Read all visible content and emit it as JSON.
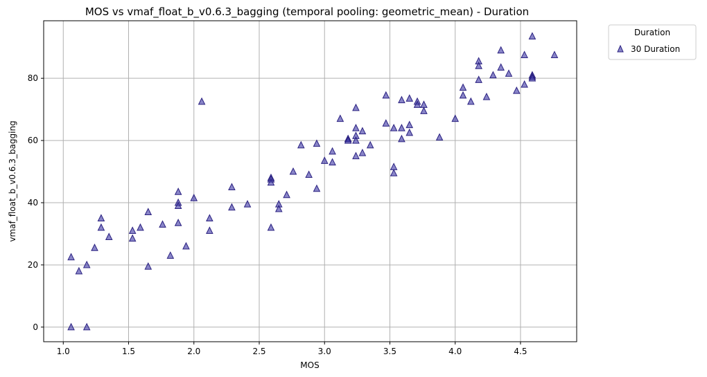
{
  "chart_data": {
    "type": "scatter",
    "title": "MOS vs vmaf_float_b_v0.6.3_bagging (temporal pooling: geometric_mean) - Duration",
    "xlabel": "MOS",
    "ylabel": "vmaf_float_b_v0.6.3_bagging",
    "xlim": [
      0.85,
      4.93
    ],
    "ylim": [
      -4.7,
      98.5
    ],
    "xticks": [
      "1.0",
      "1.5",
      "2.0",
      "2.5",
      "3.0",
      "3.5",
      "4.0",
      "4.5"
    ],
    "xtick_values": [
      1.0,
      1.5,
      2.0,
      2.5,
      3.0,
      3.5,
      4.0,
      4.5
    ],
    "yticks": [
      "0",
      "20",
      "40",
      "60",
      "80"
    ],
    "ytick_values": [
      0,
      20,
      40,
      60,
      80
    ],
    "grid": true,
    "legend": {
      "title": "Duration",
      "position": "outside-top-right"
    },
    "series": [
      {
        "name": "30 Duration",
        "marker": "triangle",
        "color": "#3b33a3",
        "points": [
          [
            1.06,
            22.5
          ],
          [
            1.06,
            0.0
          ],
          [
            1.12,
            18.0
          ],
          [
            1.18,
            20.0
          ],
          [
            1.18,
            0.0
          ],
          [
            1.24,
            25.5
          ],
          [
            1.29,
            35.0
          ],
          [
            1.29,
            32.0
          ],
          [
            1.35,
            29.0
          ],
          [
            1.53,
            31.0
          ],
          [
            1.53,
            28.5
          ],
          [
            1.59,
            32.0
          ],
          [
            1.65,
            37.0
          ],
          [
            1.65,
            19.5
          ],
          [
            1.76,
            33.0
          ],
          [
            1.82,
            23.0
          ],
          [
            1.88,
            43.5
          ],
          [
            1.88,
            40.0
          ],
          [
            1.88,
            39.0
          ],
          [
            1.88,
            33.5
          ],
          [
            1.94,
            26.0
          ],
          [
            2.0,
            41.5
          ],
          [
            2.06,
            72.5
          ],
          [
            2.12,
            35.0
          ],
          [
            2.12,
            31.0
          ],
          [
            2.29,
            45.0
          ],
          [
            2.29,
            38.5
          ],
          [
            2.41,
            39.5
          ],
          [
            2.59,
            48.0
          ],
          [
            2.59,
            47.5
          ],
          [
            2.59,
            46.5
          ],
          [
            2.59,
            32.0
          ],
          [
            2.65,
            39.5
          ],
          [
            2.65,
            38.0
          ],
          [
            2.71,
            42.5
          ],
          [
            2.76,
            50.0
          ],
          [
            2.82,
            58.5
          ],
          [
            2.88,
            49.0
          ],
          [
            2.94,
            59.0
          ],
          [
            2.94,
            44.5
          ],
          [
            3.0,
            53.5
          ],
          [
            3.06,
            56.5
          ],
          [
            3.06,
            53.0
          ],
          [
            3.12,
            67.0
          ],
          [
            3.18,
            60.5
          ],
          [
            3.18,
            60.5
          ],
          [
            3.18,
            60.0
          ],
          [
            3.24,
            70.5
          ],
          [
            3.24,
            64.0
          ],
          [
            3.24,
            61.5
          ],
          [
            3.24,
            60.0
          ],
          [
            3.24,
            55.0
          ],
          [
            3.29,
            63.0
          ],
          [
            3.29,
            56.0
          ],
          [
            3.35,
            58.5
          ],
          [
            3.47,
            74.5
          ],
          [
            3.47,
            65.5
          ],
          [
            3.53,
            64.0
          ],
          [
            3.53,
            51.5
          ],
          [
            3.53,
            49.5
          ],
          [
            3.59,
            73.0
          ],
          [
            3.59,
            64.0
          ],
          [
            3.59,
            60.5
          ],
          [
            3.65,
            73.5
          ],
          [
            3.65,
            65.0
          ],
          [
            3.65,
            62.5
          ],
          [
            3.71,
            72.5
          ],
          [
            3.71,
            71.5
          ],
          [
            3.76,
            71.5
          ],
          [
            3.76,
            69.5
          ],
          [
            3.88,
            61.0
          ],
          [
            4.0,
            67.0
          ],
          [
            4.06,
            77.0
          ],
          [
            4.06,
            74.5
          ],
          [
            4.12,
            72.5
          ],
          [
            4.18,
            85.5
          ],
          [
            4.18,
            84.0
          ],
          [
            4.18,
            79.5
          ],
          [
            4.24,
            74.0
          ],
          [
            4.29,
            81.0
          ],
          [
            4.35,
            89.0
          ],
          [
            4.35,
            83.5
          ],
          [
            4.41,
            81.5
          ],
          [
            4.47,
            76.0
          ],
          [
            4.53,
            87.5
          ],
          [
            4.53,
            78.0
          ],
          [
            4.59,
            93.5
          ],
          [
            4.59,
            81.0
          ],
          [
            4.59,
            80.5
          ],
          [
            4.59,
            80.0
          ],
          [
            4.76,
            87.5
          ]
        ]
      }
    ]
  }
}
